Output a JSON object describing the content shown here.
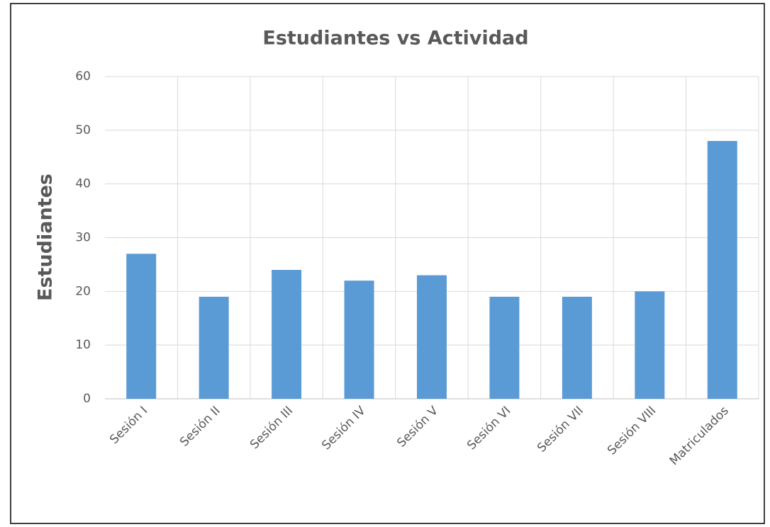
{
  "chart_data": {
    "type": "bar",
    "title": "Estudiantes vs Actividad",
    "y_label": "Estudiantes",
    "categories": [
      "Sesión I",
      "Sesión II",
      "Sesión III",
      "Sesión IV",
      "Sesión V",
      "Sesión VI",
      "Sesión VII",
      "Sesión VIII",
      "Matriculados"
    ],
    "values": [
      27,
      19,
      24,
      22,
      23,
      19,
      19,
      20,
      48
    ],
    "color": "#5b9bd5",
    "ylim": [
      0,
      60
    ],
    "yticks": [
      0,
      10,
      20,
      30,
      40,
      50,
      60
    ],
    "grid": true
  }
}
